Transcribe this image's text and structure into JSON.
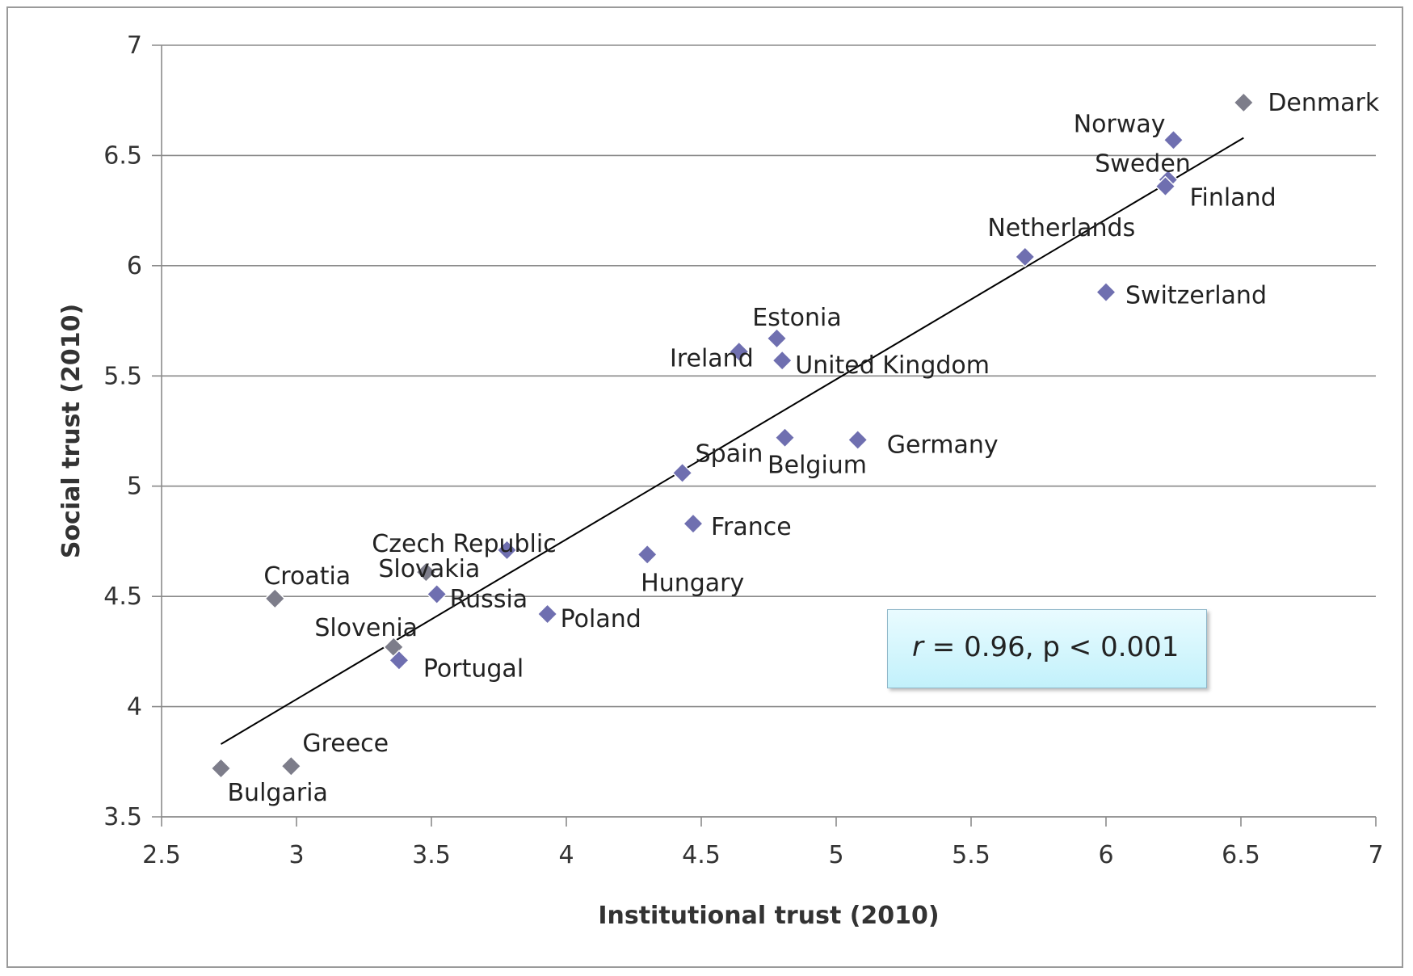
{
  "chart_data": {
    "type": "scatter",
    "title": "",
    "xlabel": "Institutional trust (2010)",
    "ylabel": "Social trust (2010)",
    "xlim": [
      2.5,
      7
    ],
    "ylim": [
      3.5,
      7
    ],
    "x_ticks": [
      "2.5",
      "3",
      "3.5",
      "4",
      "4.5",
      "5",
      "5.5",
      "6",
      "6.5",
      "7"
    ],
    "y_ticks": [
      "3.5",
      "4",
      "4.5",
      "5",
      "5.5",
      "6",
      "6.5",
      "7"
    ],
    "grid": "horizontal",
    "legend": "none",
    "colors": {
      "marker_primary": "#6f6fb0",
      "marker_secondary": "#7d7d8a",
      "gridline": "#8a8a8a",
      "trendline": "#000000"
    },
    "points": [
      {
        "label": "Denmark",
        "x": 6.51,
        "y": 6.74
      },
      {
        "label": "Norway",
        "x": 6.25,
        "y": 6.57
      },
      {
        "label": "Sweden",
        "x": 6.23,
        "y": 6.39
      },
      {
        "label": "Finland",
        "x": 6.22,
        "y": 6.36
      },
      {
        "label": "Netherlands",
        "x": 5.7,
        "y": 6.04
      },
      {
        "label": "Switzerland",
        "x": 6.0,
        "y": 5.88
      },
      {
        "label": "Estonia",
        "x": 4.78,
        "y": 5.67
      },
      {
        "label": "Ireland",
        "x": 4.64,
        "y": 5.61
      },
      {
        "label": "United Kingdom",
        "x": 4.8,
        "y": 5.57
      },
      {
        "label": "Germany",
        "x": 5.08,
        "y": 5.21
      },
      {
        "label": "Belgium",
        "x": 4.81,
        "y": 5.22
      },
      {
        "label": "Spain",
        "x": 4.43,
        "y": 5.06
      },
      {
        "label": "France",
        "x": 4.47,
        "y": 4.83
      },
      {
        "label": "Czech Republic",
        "x": 3.78,
        "y": 4.71
      },
      {
        "label": "Hungary",
        "x": 4.3,
        "y": 4.69
      },
      {
        "label": "Slovakia",
        "x": 3.48,
        "y": 4.61
      },
      {
        "label": "Croatia",
        "x": 2.92,
        "y": 4.49
      },
      {
        "label": "Russia",
        "x": 3.52,
        "y": 4.51
      },
      {
        "label": "Poland",
        "x": 3.93,
        "y": 4.42
      },
      {
        "label": "Slovenia",
        "x": 3.36,
        "y": 4.27
      },
      {
        "label": "Portugal",
        "x": 3.38,
        "y": 4.21
      },
      {
        "label": "Greece",
        "x": 2.98,
        "y": 3.73
      },
      {
        "label": "Bulgaria",
        "x": 2.72,
        "y": 3.72
      }
    ],
    "trendline": {
      "x": [
        2.72,
        6.51
      ],
      "y": [
        3.83,
        6.58
      ]
    },
    "annotation": "r = 0.96, p < 0.001"
  },
  "stat_box": {
    "r_symbol": "r",
    "text": " = 0.96, p < 0.001"
  }
}
